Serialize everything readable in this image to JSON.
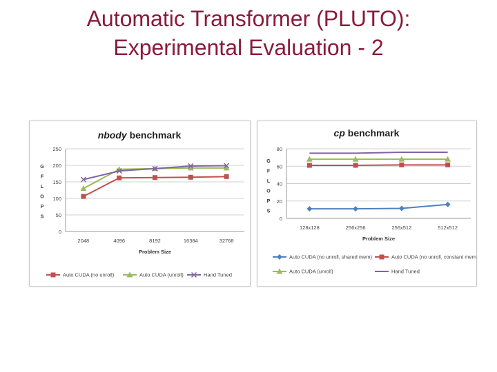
{
  "slide": {
    "title_line1": "Automatic Transformer (PLUTO):",
    "title_line2": "Experimental Evaluation - 2"
  },
  "chart_data": [
    {
      "type": "line",
      "title_italic": "nbody",
      "title_rest": " benchmark",
      "ylabel": "GFLOPS",
      "xlabel": "Problem Size",
      "categories": [
        "2048",
        "4096",
        "8192",
        "16384",
        "32768"
      ],
      "ylim": [
        0,
        250
      ],
      "yticks": [
        0,
        50,
        100,
        150,
        200,
        250
      ],
      "grid": true,
      "legend_position": "bottom",
      "series": [
        {
          "name": "Auto CUDA (no unroll)",
          "color": "#c0504d",
          "marker": "square",
          "values": [
            106,
            162,
            163,
            164,
            166
          ]
        },
        {
          "name": "Auto CUDA (unroll)",
          "color": "#9bbb59",
          "marker": "triangle",
          "values": [
            130,
            188,
            190,
            192,
            192
          ]
        },
        {
          "name": "Hand Tuned",
          "color": "#8064a2",
          "marker": "x",
          "values": [
            157,
            183,
            190,
            198,
            199
          ]
        }
      ]
    },
    {
      "type": "line",
      "title_italic": "cp",
      "title_rest": "  benchmark",
      "ylabel": "GFLOPS",
      "xlabel": "Problem Size",
      "categories": [
        "128x128",
        "256x256",
        "256x512",
        "512x512"
      ],
      "ylim": [
        0,
        80
      ],
      "yticks": [
        0,
        20,
        40,
        60,
        80
      ],
      "grid": true,
      "legend_position": "bottom",
      "series": [
        {
          "name": "Auto CUDA (no unroll, shared mem)",
          "color": "#4f81bd",
          "marker": "diamond",
          "values": [
            11,
            11,
            11.5,
            16
          ]
        },
        {
          "name": "Auto CUDA (no unroll, constant mem)",
          "color": "#c0504d",
          "marker": "square",
          "values": [
            61,
            61,
            61.5,
            61.5
          ]
        },
        {
          "name": "Auto CUDA (unroll)",
          "color": "#9bbb59",
          "marker": "triangle",
          "values": [
            68,
            68,
            68,
            68
          ]
        },
        {
          "name": "Hand Tuned",
          "color": "#8064a2",
          "marker": "none",
          "values": [
            75,
            75,
            76,
            76
          ]
        }
      ]
    }
  ]
}
